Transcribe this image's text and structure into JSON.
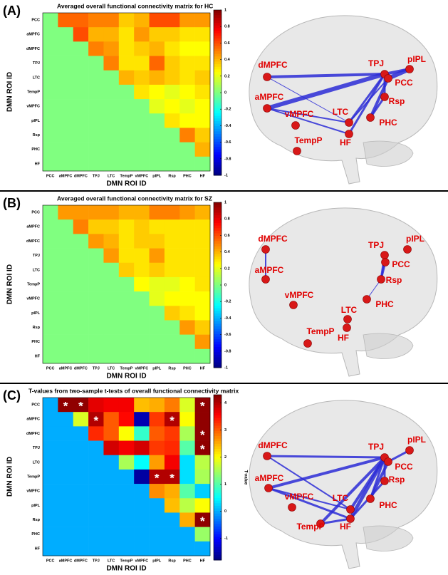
{
  "chart_data": [
    {
      "type": "heatmap",
      "panel_label": "(A)",
      "title": "Averaged overall functional connectivity matrix for HC",
      "x_label": "DMN ROI ID",
      "y_label": "DMN ROI ID",
      "categories": [
        "PCC",
        "aMPFC",
        "dMPFC",
        "TPJ",
        "LTC",
        "TempP",
        "vMPFC",
        "pIPL",
        "Rsp",
        "PHC",
        "HF"
      ],
      "values": [
        [
          0,
          0.55,
          0.55,
          0.5,
          0.5,
          0.35,
          0.4,
          0.6,
          0.6,
          0.45,
          0.45
        ],
        [
          0,
          0,
          0.6,
          0.4,
          0.4,
          0.3,
          0.45,
          0.35,
          0.35,
          0.3,
          0.3
        ],
        [
          0,
          0,
          0,
          0.5,
          0.45,
          0.3,
          0.35,
          0.4,
          0.3,
          0.25,
          0.25
        ],
        [
          0,
          0,
          0,
          0,
          0.5,
          0.3,
          0.3,
          0.55,
          0.35,
          0.3,
          0.3
        ],
        [
          0,
          0,
          0,
          0,
          0,
          0.4,
          0.35,
          0.4,
          0.35,
          0.3,
          0.35
        ],
        [
          0,
          0,
          0,
          0,
          0,
          0,
          0.3,
          0.25,
          0.2,
          0.25,
          0.3
        ],
        [
          0,
          0,
          0,
          0,
          0,
          0,
          0,
          0.2,
          0.25,
          0.2,
          0.25
        ],
        [
          0,
          0,
          0,
          0,
          0,
          0,
          0,
          0,
          0.3,
          0.25,
          0.25
        ],
        [
          0,
          0,
          0,
          0,
          0,
          0,
          0,
          0,
          0,
          0.5,
          0.35
        ],
        [
          0,
          0,
          0,
          0,
          0,
          0,
          0,
          0,
          0,
          0,
          0.4
        ],
        [
          0,
          0,
          0,
          0,
          0,
          0,
          0,
          0,
          0,
          0,
          0
        ]
      ],
      "colorscale": "jet",
      "zlim": [
        -1,
        1
      ],
      "zticks": [
        1,
        0.8,
        0.6,
        0.4,
        0.2,
        0,
        -0.2,
        -0.4,
        -0.6,
        -0.8,
        -1
      ],
      "nodes": [
        "dMPFC",
        "aMPFC",
        "vMPFC",
        "TempP",
        "LTC",
        "HF",
        "TPJ",
        "pIPL",
        "PCC",
        "Rsp",
        "PHC"
      ]
    },
    {
      "type": "heatmap",
      "panel_label": "(B)",
      "title": "Averaged overall functional connectivity matrix for SZ",
      "x_label": "DMN ROI ID",
      "y_label": "DMN ROI ID",
      "categories": [
        "PCC",
        "aMPFC",
        "dMPFC",
        "TPJ",
        "LTC",
        "TempP",
        "vMPFC",
        "pIPL",
        "Rsp",
        "PHC",
        "HF"
      ],
      "values": [
        [
          0,
          0.45,
          0.45,
          0.45,
          0.45,
          0.4,
          0.4,
          0.5,
          0.5,
          0.45,
          0.4
        ],
        [
          0,
          0,
          0.5,
          0.35,
          0.35,
          0.3,
          0.35,
          0.3,
          0.3,
          0.3,
          0.3
        ],
        [
          0,
          0,
          0,
          0.45,
          0.4,
          0.3,
          0.35,
          0.35,
          0.3,
          0.3,
          0.3
        ],
        [
          0,
          0,
          0,
          0,
          0.45,
          0.3,
          0.3,
          0.45,
          0.3,
          0.3,
          0.3
        ],
        [
          0,
          0,
          0,
          0,
          0,
          0.35,
          0.3,
          0.35,
          0.3,
          0.3,
          0.3
        ],
        [
          0,
          0,
          0,
          0,
          0,
          0,
          0.25,
          0.2,
          0.2,
          0.25,
          0.3
        ],
        [
          0,
          0,
          0,
          0,
          0,
          0,
          0,
          0.2,
          0.25,
          0.25,
          0.25
        ],
        [
          0,
          0,
          0,
          0,
          0,
          0,
          0,
          0,
          0.35,
          0.3,
          0.25
        ],
        [
          0,
          0,
          0,
          0,
          0,
          0,
          0,
          0,
          0,
          0.45,
          0.35
        ],
        [
          0,
          0,
          0,
          0,
          0,
          0,
          0,
          0,
          0,
          0,
          0.45
        ],
        [
          0,
          0,
          0,
          0,
          0,
          0,
          0,
          0,
          0,
          0,
          0
        ]
      ],
      "colorscale": "jet",
      "zlim": [
        -1,
        1
      ],
      "zticks": [
        1,
        0.8,
        0.6,
        0.4,
        0.2,
        0,
        -0.2,
        -0.4,
        -0.6,
        -0.8,
        -1
      ],
      "nodes": [
        "dMPFC",
        "aMPFC",
        "vMPFC",
        "TempP",
        "LTC",
        "HF",
        "TPJ",
        "pIPL",
        "PCC",
        "Rsp",
        "PHC"
      ]
    },
    {
      "type": "heatmap",
      "panel_label": "(C)",
      "title": "T-values from two-sample t-tests of overall functional connectivity matrix",
      "x_label": "DMN ROI ID",
      "y_label": "DMN ROI ID",
      "colorbar_label": "T-value",
      "categories": [
        "PCC",
        "aMPFC",
        "dMPFC",
        "TPJ",
        "LTC",
        "TempP",
        "vMPFC",
        "pIPL",
        "Rsp",
        "PHC",
        "HF"
      ],
      "values": [
        [
          0,
          4.2,
          4.2,
          3.7,
          3.6,
          3.6,
          2.4,
          2.5,
          2.8,
          1.8,
          4.2
        ],
        [
          0,
          0,
          1.8,
          4.0,
          3.0,
          3.5,
          -1.5,
          3.2,
          4.0,
          2.0,
          4.2
        ],
        [
          0,
          0,
          0,
          3.3,
          3.0,
          2.0,
          0.8,
          3.0,
          3.2,
          1.5,
          4.2
        ],
        [
          0,
          0,
          0,
          0,
          3.8,
          3.6,
          3.8,
          3.2,
          3.3,
          1.0,
          4.2
        ],
        [
          0,
          0,
          0,
          0,
          0,
          1.5,
          0.5,
          2.6,
          3.6,
          0.3,
          1.6
        ],
        [
          0,
          0,
          0,
          0,
          0,
          0,
          -1.6,
          4.0,
          4.0,
          0.3,
          1.5
        ],
        [
          0,
          0,
          0,
          0,
          0,
          0,
          0,
          2.7,
          2.5,
          1.0,
          0.2
        ],
        [
          0,
          0,
          0,
          0,
          0,
          0,
          0,
          0,
          2.4,
          1.6,
          2.0
        ],
        [
          0,
          0,
          0,
          0,
          0,
          0,
          0,
          0,
          0,
          2.5,
          4.2
        ],
        [
          0,
          0,
          0,
          0,
          0,
          0,
          0,
          0,
          0,
          0,
          1.4
        ],
        [
          0,
          0,
          0,
          0,
          0,
          0,
          0,
          0,
          0,
          0,
          0
        ]
      ],
      "annotations": [
        {
          "row": "PCC",
          "col": "aMPFC",
          "text": "*"
        },
        {
          "row": "PCC",
          "col": "dMPFC",
          "text": "*"
        },
        {
          "row": "PCC",
          "col": "HF",
          "text": "*"
        },
        {
          "row": "aMPFC",
          "col": "TPJ",
          "text": "*"
        },
        {
          "row": "aMPFC",
          "col": "Rsp",
          "text": "*"
        },
        {
          "row": "dMPFC",
          "col": "HF",
          "text": "*"
        },
        {
          "row": "TPJ",
          "col": "HF",
          "text": "*"
        },
        {
          "row": "TempP",
          "col": "pIPL",
          "text": "*"
        },
        {
          "row": "TempP",
          "col": "Rsp",
          "text": "*"
        },
        {
          "row": "Rsp",
          "col": "HF",
          "text": "*"
        }
      ],
      "colorscale": "jet",
      "zlim": [
        -1.8,
        4.3
      ],
      "zticks": [
        4,
        3,
        2,
        1,
        0,
        -1
      ],
      "nodes": [
        "dMPFC",
        "aMPFC",
        "vMPFC",
        "TempP",
        "LTC",
        "HF",
        "TPJ",
        "pIPL",
        "PCC",
        "Rsp",
        "PHC"
      ]
    }
  ]
}
